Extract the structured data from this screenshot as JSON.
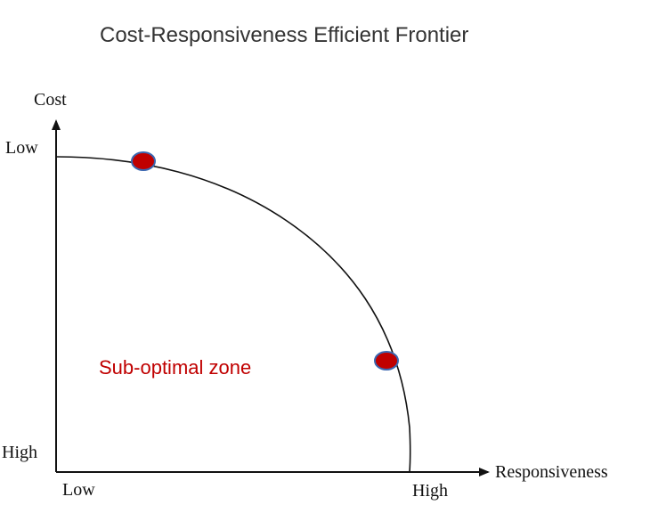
{
  "title": "Cost-Responsiveness Efficient Frontier",
  "axes": {
    "y": {
      "label": "Cost",
      "top_tick": "Low",
      "bottom_tick": "High"
    },
    "x": {
      "label": "Responsiveness",
      "left_tick": "Low",
      "right_tick": "High"
    }
  },
  "zone_label": "Sub-optimal zone",
  "colors": {
    "zone_text": "#c00000",
    "point_fill": "#c00000",
    "point_stroke": "#3b67b0",
    "line": "#111111"
  },
  "elements": {
    "frontier_curve": "efficient frontier curve",
    "points": [
      "frontier-point-1",
      "frontier-point-2"
    ]
  }
}
